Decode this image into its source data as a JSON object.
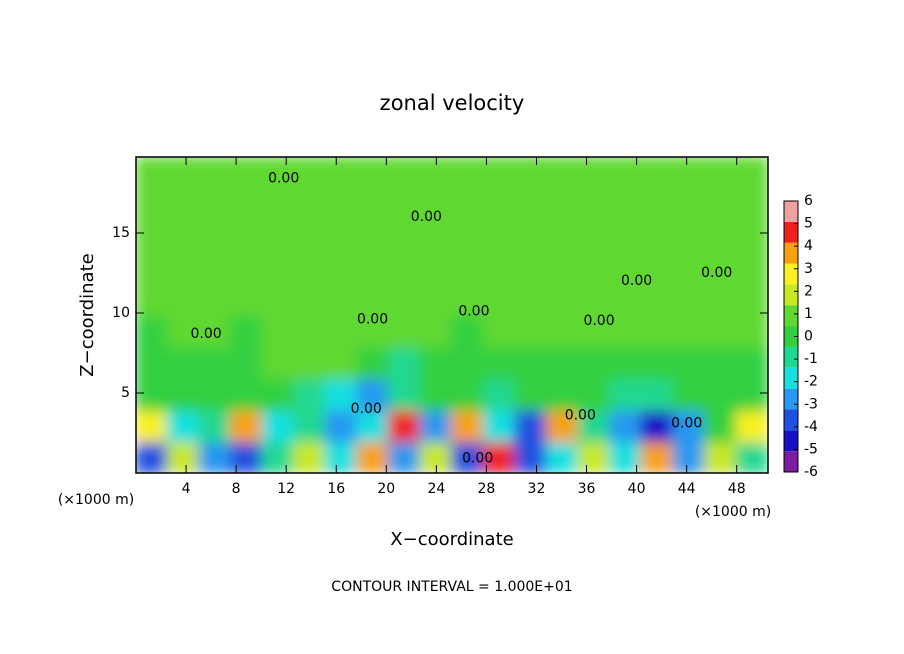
{
  "chart_data": {
    "type": "contour",
    "title": "zonal velocity",
    "xlabel": "X−coordinate",
    "ylabel": "Z−coordinate",
    "x_unit": "(×1000 m)",
    "x_unit_right": "(×1000 m)",
    "footer": "CONTOUR INTERVAL = 1.000E+01",
    "xlim": [
      0,
      50.5
    ],
    "ylim": [
      0,
      19.75
    ],
    "xticks": [
      4,
      8,
      12,
      16,
      20,
      24,
      28,
      32,
      36,
      40,
      44,
      48
    ],
    "yticks": [
      5,
      10,
      15
    ],
    "z": [
      [
        -4,
        2,
        -3,
        -4,
        -1,
        2,
        -2,
        4,
        -3,
        2,
        -4,
        5,
        -4,
        -2,
        2,
        -2,
        4,
        -3,
        2,
        -1
      ],
      [
        3,
        -2,
        -1,
        4,
        -2,
        -1,
        -3,
        -2,
        5,
        -3,
        4,
        -2,
        -4,
        4,
        -1,
        -3,
        -5,
        -3,
        0,
        3
      ],
      [
        0,
        0,
        0,
        0,
        0,
        -1,
        -2,
        -3,
        -1,
        0,
        0,
        -1,
        0,
        0,
        0,
        -1,
        -1,
        0,
        0,
        0
      ],
      [
        0,
        0,
        0,
        0,
        1,
        1,
        1,
        0,
        -1,
        0,
        0,
        0,
        0,
        0,
        0,
        0,
        0,
        0,
        0,
        0
      ],
      [
        0,
        1,
        1,
        0,
        1,
        1,
        1,
        1,
        1,
        1,
        0,
        1,
        1,
        1,
        1,
        1,
        1,
        1,
        1,
        1
      ],
      [
        1,
        1,
        1,
        1,
        1,
        1,
        1,
        1,
        1,
        1,
        1,
        1,
        1,
        1,
        1,
        1,
        1,
        1,
        1,
        1
      ],
      [
        1,
        1,
        1,
        1,
        1,
        1,
        1,
        1,
        1,
        1,
        1,
        1,
        1,
        1,
        1,
        1,
        1,
        1,
        1,
        1
      ],
      [
        1,
        1,
        1,
        1,
        1,
        1,
        1,
        1,
        1,
        1,
        1,
        1,
        1,
        1,
        1,
        1,
        1,
        1,
        1,
        1
      ],
      [
        1,
        1,
        1,
        1,
        1,
        1,
        1,
        1,
        1,
        1,
        1,
        1,
        1,
        1,
        1,
        1,
        1,
        1,
        1,
        1
      ],
      [
        1,
        1,
        1,
        1,
        1,
        1,
        1,
        1,
        1,
        1,
        1,
        1,
        1,
        1,
        1,
        1,
        1,
        1,
        1,
        1
      ]
    ],
    "colorbar": {
      "ticks": [
        -6,
        -5,
        -4,
        -3,
        -2,
        -1,
        0,
        1,
        2,
        3,
        4,
        5,
        6
      ],
      "colors": [
        "#7a1fa0",
        "#1a10c8",
        "#2050e0",
        "#2898f0",
        "#18e0e0",
        "#20d890",
        "#30d040",
        "#60d830",
        "#c8e820",
        "#f8f020",
        "#f8a010",
        "#f02020",
        "#f0a0a0"
      ]
    },
    "contour_labels": [
      {
        "x": 11.8,
        "y": 18.4,
        "label": "0.00"
      },
      {
        "x": 23.2,
        "y": 16.0,
        "label": "0.00"
      },
      {
        "x": 5.6,
        "y": 8.7,
        "label": "0.00"
      },
      {
        "x": 18.9,
        "y": 9.6,
        "label": "0.00"
      },
      {
        "x": 27.0,
        "y": 10.1,
        "label": "0.00"
      },
      {
        "x": 37.0,
        "y": 9.5,
        "label": "0.00"
      },
      {
        "x": 40.0,
        "y": 12.0,
        "label": "0.00"
      },
      {
        "x": 46.4,
        "y": 12.5,
        "label": "0.00"
      },
      {
        "x": 18.4,
        "y": 4.0,
        "label": "0.00"
      },
      {
        "x": 35.5,
        "y": 3.6,
        "label": "0.00"
      },
      {
        "x": 44.0,
        "y": 3.1,
        "label": "0.00"
      },
      {
        "x": 27.3,
        "y": 0.9,
        "label": "0.00"
      }
    ]
  }
}
